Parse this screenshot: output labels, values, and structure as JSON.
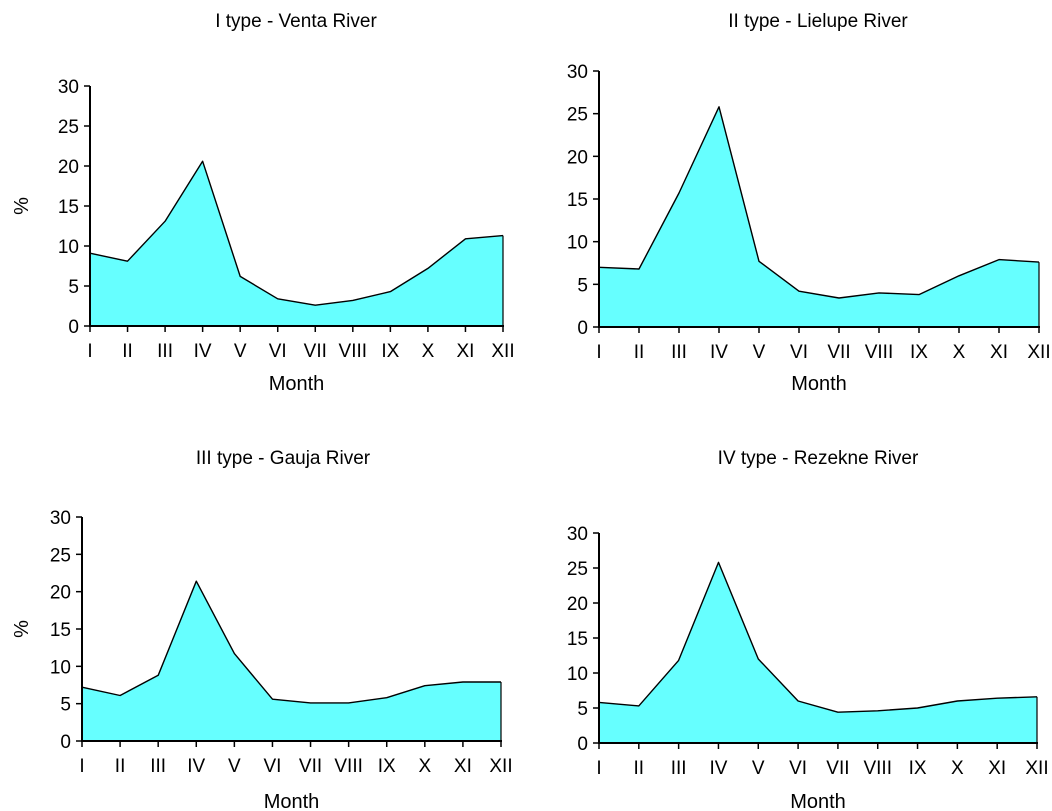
{
  "colors": {
    "fill": "#66ffff",
    "line": "#000000",
    "background": "#ffffff"
  },
  "chart_data": [
    {
      "type": "area",
      "title": "I type - Venta River",
      "xlabel": "Month",
      "ylabel": "%",
      "categories": [
        "I",
        "II",
        "III",
        "IV",
        "V",
        "VI",
        "VII",
        "VIII",
        "IX",
        "X",
        "XI",
        "XII"
      ],
      "values": [
        9.1,
        8.1,
        13.1,
        20.6,
        6.2,
        3.4,
        2.6,
        3.2,
        4.3,
        7.2,
        10.9,
        11.3
      ],
      "ylim": [
        0,
        30
      ],
      "yticks": [
        0,
        5,
        10,
        15,
        20,
        25,
        30
      ],
      "grid": false,
      "legend": "none"
    },
    {
      "type": "area",
      "title": "II type - Lielupe River",
      "xlabel": "Month",
      "ylabel": "",
      "categories": [
        "I",
        "II",
        "III",
        "IV",
        "V",
        "VI",
        "VII",
        "VIII",
        "IX",
        "X",
        "XI",
        "XII"
      ],
      "values": [
        7.0,
        6.8,
        15.7,
        25.8,
        7.7,
        4.2,
        3.4,
        4.0,
        3.8,
        6.0,
        7.9,
        7.6
      ],
      "ylim": [
        0,
        30
      ],
      "yticks": [
        0,
        5,
        10,
        15,
        20,
        25,
        30
      ],
      "grid": false,
      "legend": "none"
    },
    {
      "type": "area",
      "title": "III type - Gauja River",
      "xlabel": "Month",
      "ylabel": "%",
      "categories": [
        "I",
        "II",
        "III",
        "IV",
        "V",
        "VI",
        "VII",
        "VIII",
        "IX",
        "X",
        "XI",
        "XII"
      ],
      "values": [
        7.2,
        6.1,
        8.8,
        21.4,
        11.7,
        5.6,
        5.1,
        5.1,
        5.8,
        7.4,
        7.9,
        7.9
      ],
      "ylim": [
        0,
        30
      ],
      "yticks": [
        0,
        5,
        10,
        15,
        20,
        25,
        30
      ],
      "grid": false,
      "legend": "none"
    },
    {
      "type": "area",
      "title": "IV type - Rezekne River",
      "xlabel": "Month",
      "ylabel": "",
      "categories": [
        "I",
        "II",
        "III",
        "IV",
        "V",
        "VI",
        "VII",
        "VIII",
        "IX",
        "X",
        "XI",
        "XII"
      ],
      "values": [
        5.8,
        5.3,
        11.8,
        25.8,
        12.0,
        6.0,
        4.4,
        4.6,
        5.0,
        6.0,
        6.4,
        6.6
      ],
      "ylim": [
        0,
        30
      ],
      "yticks": [
        0,
        5,
        10,
        15,
        20,
        25,
        30
      ],
      "grid": false,
      "legend": "none"
    }
  ]
}
